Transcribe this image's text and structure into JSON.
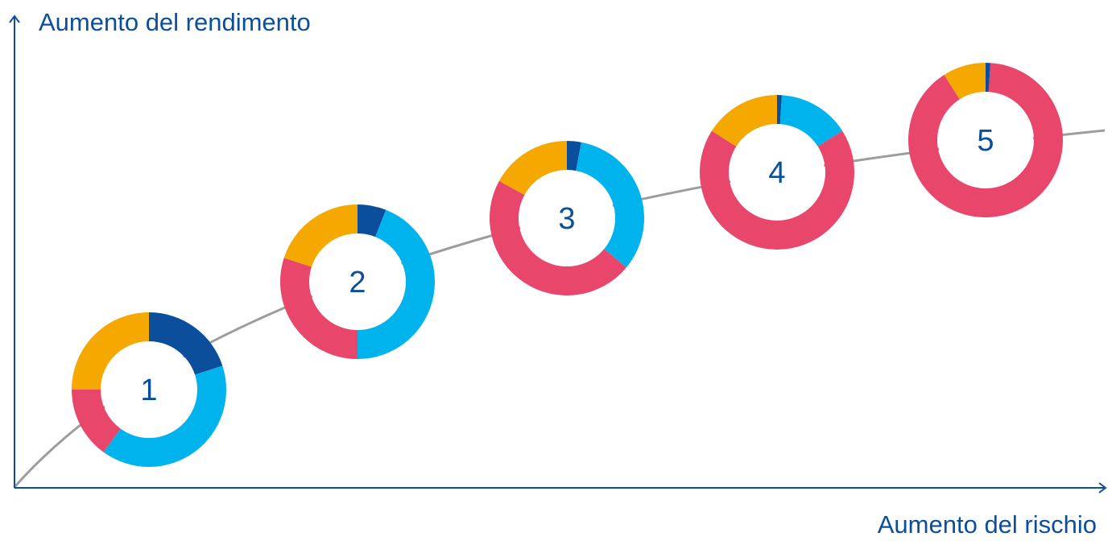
{
  "chart_data": {
    "type": "pie",
    "variant": "donut",
    "ylabel": "Aumento del rendimento",
    "xlabel": "Aumento del rischio",
    "segment_order": [
      "dark_blue",
      "light_blue",
      "red",
      "orange"
    ],
    "segment_colors": {
      "dark_blue": "#0b4f9c",
      "light_blue": "#00b3ec",
      "red": "#e8466a",
      "orange": "#f5a800"
    },
    "curve_color": "#9d9d9d",
    "axis_color": "#0b4f9c",
    "portfolios": [
      {
        "label": "1",
        "values": [
          20,
          40,
          15,
          25
        ]
      },
      {
        "label": "2",
        "values": [
          6,
          44,
          30,
          20
        ]
      },
      {
        "label": "3",
        "values": [
          3,
          33,
          47,
          17
        ]
      },
      {
        "label": "4",
        "values": [
          1,
          15,
          68,
          16
        ]
      },
      {
        "label": "5",
        "values": [
          1,
          0,
          90,
          9
        ]
      }
    ]
  }
}
